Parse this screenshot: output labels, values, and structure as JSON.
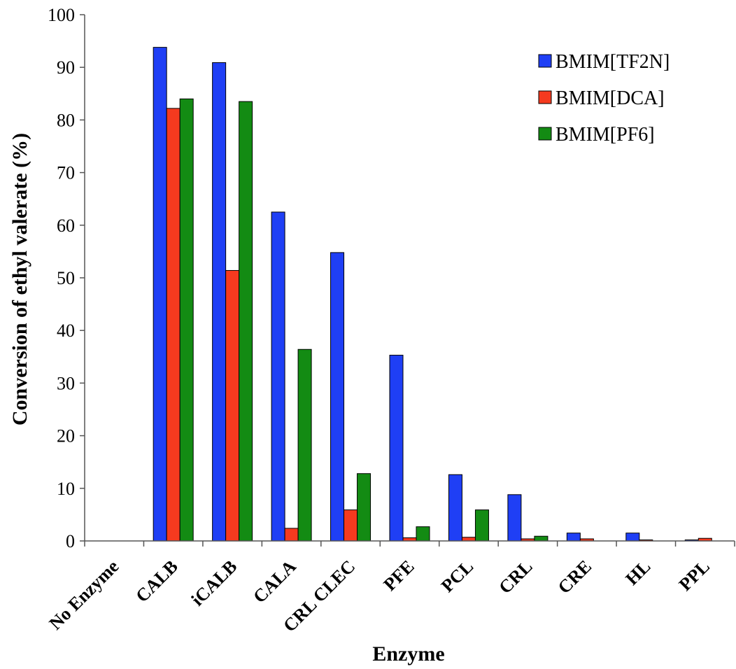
{
  "chart_data": {
    "type": "bar",
    "xlabel": "Enzyme",
    "ylabel": "Conversion of ethyl valerate (%)",
    "ylim": [
      0,
      100
    ],
    "yticks": [
      0,
      10,
      20,
      30,
      40,
      50,
      60,
      70,
      80,
      90,
      100
    ],
    "grid": false,
    "legend_position": "top-right",
    "categories": [
      "No Enzyme",
      "CALB",
      "iCALB",
      "CALA",
      "CRL CLEC",
      "PFE",
      "PCL",
      "CRL",
      "CRE",
      "HL",
      "PPL"
    ],
    "series": [
      {
        "name": "BMIM[TF2N]",
        "color": "#1f3ff5",
        "values": [
          0,
          93.8,
          90.9,
          62.5,
          54.8,
          35.3,
          12.6,
          8.8,
          1.5,
          1.5,
          0.2
        ]
      },
      {
        "name": "BMIM[DCA]",
        "color": "#f53a1f",
        "values": [
          0,
          82.2,
          51.4,
          2.4,
          5.9,
          0.6,
          0.7,
          0.4,
          0.4,
          0.2,
          0.5
        ]
      },
      {
        "name": "BMIM[PF6]",
        "color": "#138b13",
        "values": [
          0,
          84.0,
          83.5,
          36.4,
          12.8,
          2.7,
          5.9,
          0.9,
          0,
          0,
          0
        ]
      }
    ]
  }
}
